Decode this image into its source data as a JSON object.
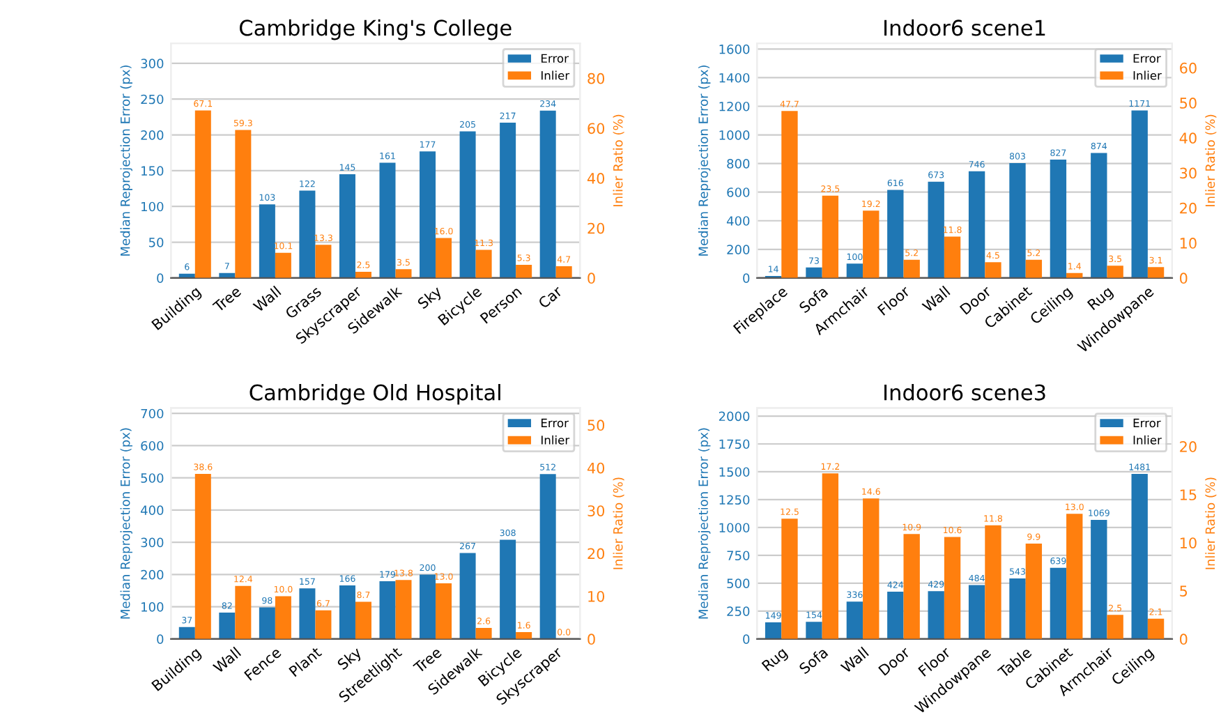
{
  "chart_data": [
    {
      "type": "bar",
      "title": "Cambridge King's College",
      "ylabel": "Median Reprojection Error (px)",
      "y2label": "Inlier Ratio (%)",
      "categories": [
        "Building",
        "Tree",
        "Wall",
        "Grass",
        "Skyscraper",
        "Sidewalk",
        "Sky",
        "Bicycle",
        "Person",
        "Car"
      ],
      "ylim": [
        0,
        328
      ],
      "yticks": [
        0,
        50,
        100,
        150,
        200,
        250,
        300
      ],
      "y2lim": [
        0,
        94
      ],
      "y2ticks": [
        0,
        20,
        40,
        60,
        80
      ],
      "grid": "y",
      "legend": "top right",
      "series": [
        {
          "name": "Error",
          "color": "#1f77b4",
          "values": [
            6,
            7,
            103,
            122,
            145,
            161,
            177,
            205,
            217,
            234
          ],
          "value_labels": [
            "6",
            "7",
            "103",
            "122",
            "145",
            "161",
            "177",
            "205",
            "217",
            "234"
          ]
        },
        {
          "name": "Inlier",
          "color": "#ff7f0e",
          "axis": "y2",
          "values": [
            67.1,
            59.3,
            10.1,
            13.3,
            2.5,
            3.5,
            16.0,
            11.3,
            5.3,
            4.7
          ],
          "value_labels": [
            "67.1",
            "59.3",
            "10.1",
            "13.3",
            "2.5",
            "3.5",
            "16.0",
            "11.3",
            "5.3",
            "4.7"
          ]
        }
      ]
    },
    {
      "type": "bar",
      "title": "Indoor6 scene1",
      "ylabel": "Median Reprojection Error (px)",
      "y2label": "Inlier Ratio (%)",
      "categories": [
        "Fireplace",
        "Sofa",
        "Armchair",
        "Floor",
        "Wall",
        "Door",
        "Cabinet",
        "Ceiling",
        "Rug",
        "Windowpane"
      ],
      "ylim": [
        0,
        1640
      ],
      "yticks": [
        0,
        200,
        400,
        600,
        800,
        1000,
        1200,
        1400,
        1600
      ],
      "y2lim": [
        0,
        67
      ],
      "y2ticks": [
        0,
        10,
        20,
        30,
        40,
        50,
        60
      ],
      "grid": "y",
      "legend": "top right",
      "series": [
        {
          "name": "Error",
          "color": "#1f77b4",
          "values": [
            14,
            73,
            100,
            616,
            673,
            746,
            803,
            827,
            874,
            1171
          ],
          "value_labels": [
            "14",
            "73",
            "100",
            "616",
            "673",
            "746",
            "803",
            "827",
            "874",
            "1171"
          ]
        },
        {
          "name": "Inlier",
          "color": "#ff7f0e",
          "axis": "y2",
          "values": [
            47.7,
            23.5,
            19.2,
            5.2,
            11.8,
            4.5,
            5.2,
            1.4,
            3.5,
            3.1
          ],
          "value_labels": [
            "47.7",
            "23.5",
            "19.2",
            "5.2",
            "11.8",
            "4.5",
            "5.2",
            "1.4",
            "3.5",
            "3.1"
          ]
        }
      ]
    },
    {
      "type": "bar",
      "title": "Cambridge Old Hospital",
      "ylabel": "Median Reprojection Error (px)",
      "y2label": "Inlier Ratio (%)",
      "categories": [
        "Building",
        "Wall",
        "Fence",
        "Plant",
        "Sky",
        "Streetlight",
        "Tree",
        "Sidewalk",
        "Bicycle",
        "Skyscraper"
      ],
      "ylim": [
        0,
        717
      ],
      "yticks": [
        0,
        100,
        200,
        300,
        400,
        500,
        600,
        700
      ],
      "y2lim": [
        0,
        54
      ],
      "y2ticks": [
        0,
        10,
        20,
        30,
        40,
        50
      ],
      "grid": "y",
      "legend": "top right",
      "series": [
        {
          "name": "Error",
          "color": "#1f77b4",
          "values": [
            37,
            82,
            98,
            157,
            166,
            179,
            200,
            267,
            308,
            512
          ],
          "value_labels": [
            "37",
            "82",
            "98",
            "157",
            "166",
            "179",
            "200",
            "267",
            "308",
            "512"
          ]
        },
        {
          "name": "Inlier",
          "color": "#ff7f0e",
          "axis": "y2",
          "values": [
            38.6,
            12.4,
            10.0,
            6.7,
            8.7,
            13.8,
            13.0,
            2.6,
            1.6,
            0.0
          ],
          "value_labels": [
            "38.6",
            "12.4",
            "10.0",
            "6.7",
            "8.7",
            "13.8",
            "13.0",
            "2.6",
            "1.6",
            "0.0"
          ]
        }
      ]
    },
    {
      "type": "bar",
      "title": "Indoor6 scene3",
      "ylabel": "Median Reprojection Error (px)",
      "y2label": "Inlier Ratio (%)",
      "categories": [
        "Rug",
        "Sofa",
        "Wall",
        "Door",
        "Floor",
        "Windowpane",
        "Table",
        "Cabinet",
        "Armchair",
        "Ceiling"
      ],
      "ylim": [
        0,
        2073
      ],
      "yticks": [
        0,
        250,
        500,
        750,
        1000,
        1250,
        1500,
        1750,
        2000
      ],
      "y2lim": [
        0,
        24
      ],
      "y2ticks": [
        0,
        5,
        10,
        15,
        20
      ],
      "grid": "y",
      "legend": "top right",
      "series": [
        {
          "name": "Error",
          "color": "#1f77b4",
          "values": [
            149,
            154,
            336,
            424,
            429,
            484,
            543,
            639,
            1069,
            1481
          ],
          "value_labels": [
            "149",
            "154",
            "336",
            "424",
            "429",
            "484",
            "543",
            "639",
            "1069",
            "1481"
          ]
        },
        {
          "name": "Inlier",
          "color": "#ff7f0e",
          "axis": "y2",
          "values": [
            12.5,
            17.2,
            14.6,
            10.9,
            10.6,
            11.8,
            9.9,
            13.0,
            2.5,
            2.1
          ],
          "value_labels": [
            "12.5",
            "17.2",
            "14.6",
            "10.9",
            "10.6",
            "11.8",
            "9.9",
            "13.0",
            "2.5",
            "2.1"
          ]
        }
      ]
    }
  ]
}
